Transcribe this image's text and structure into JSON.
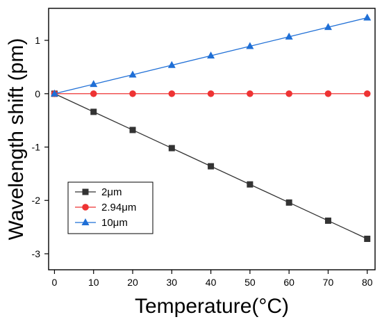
{
  "chart_data": {
    "type": "line",
    "xlabel": "Temperature(°C)",
    "ylabel": "Wavelength shift (pm)",
    "x": [
      0,
      10,
      20,
      30,
      40,
      50,
      60,
      70,
      80
    ],
    "xlim": [
      -1.5,
      82
    ],
    "ylim": [
      -3.3,
      1.6
    ],
    "xticks": [
      0,
      10,
      20,
      30,
      40,
      50,
      60,
      70,
      80
    ],
    "yticks": [
      -3,
      -2,
      -1,
      0,
      1
    ],
    "grid": false,
    "legend_position": "bottom-left",
    "series": [
      {
        "name": "2μm",
        "color": "#333333",
        "marker": "square",
        "values": [
          0,
          -0.34,
          -0.68,
          -1.02,
          -1.36,
          -1.7,
          -2.04,
          -2.38,
          -2.72
        ]
      },
      {
        "name": "2.94μm",
        "color": "#ee3333",
        "marker": "circle",
        "values": [
          0,
          0,
          0,
          0,
          0,
          0,
          0,
          0,
          0
        ]
      },
      {
        "name": "10μm",
        "color": "#1f6fd6",
        "marker": "triangle",
        "values": [
          0,
          0.178,
          0.356,
          0.534,
          0.712,
          0.89,
          1.068,
          1.246,
          1.424
        ]
      }
    ]
  }
}
